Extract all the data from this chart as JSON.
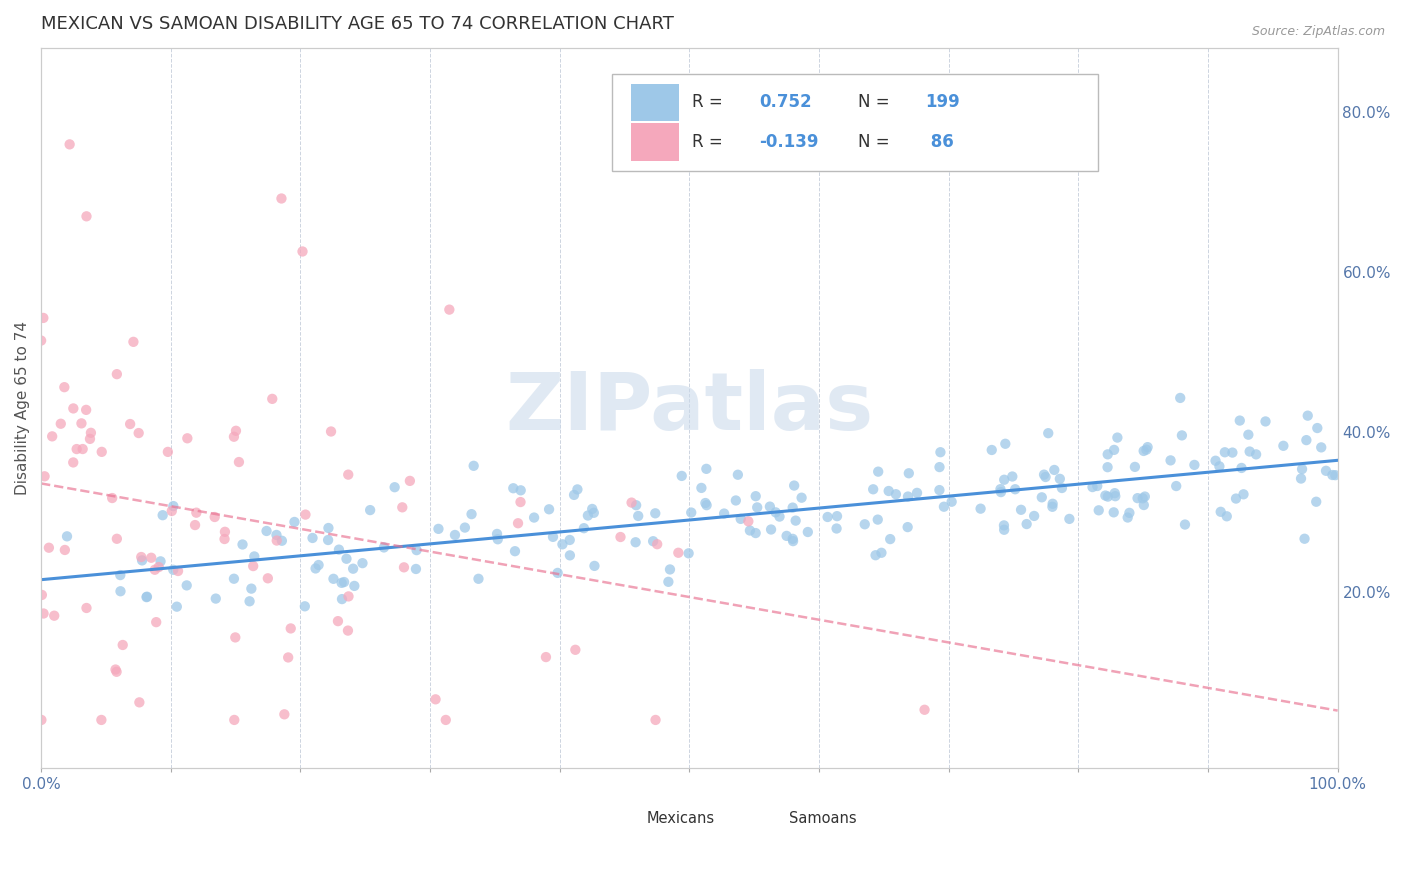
{
  "title": "MEXICAN VS SAMOAN DISABILITY AGE 65 TO 74 CORRELATION CHART",
  "source_text": "Source: ZipAtlas.com",
  "ylabel": "Disability Age 65 to 74",
  "xlim": [
    0,
    1.0
  ],
  "ylim": [
    -0.02,
    0.88
  ],
  "right_yticks": [
    0.2,
    0.4,
    0.6,
    0.8
  ],
  "right_ytick_labels": [
    "20.0%",
    "40.0%",
    "60.0%",
    "80.0%"
  ],
  "xticks": [
    0.0,
    0.1,
    0.2,
    0.3,
    0.4,
    0.5,
    0.6,
    0.7,
    0.8,
    0.9,
    1.0
  ],
  "xtick_labels": [
    "0.0%",
    "",
    "",
    "",
    "",
    "",
    "",
    "",
    "",
    "",
    "100.0%"
  ],
  "mexican_R": 0.752,
  "mexican_N": 199,
  "samoan_R": -0.139,
  "samoan_N": 86,
  "mexican_color": "#9ec8e8",
  "samoan_color": "#f5a8bc",
  "mexican_line_color": "#4a90d9",
  "samoan_line_color": "#e87090",
  "watermark_color": "#c8d8ea",
  "grid_color": "#c8d0dc",
  "title_fontsize": 13,
  "label_fontsize": 11,
  "tick_fontsize": 11,
  "legend_R_color": "#4a90d9",
  "legend_N_color": "#4a90d9"
}
